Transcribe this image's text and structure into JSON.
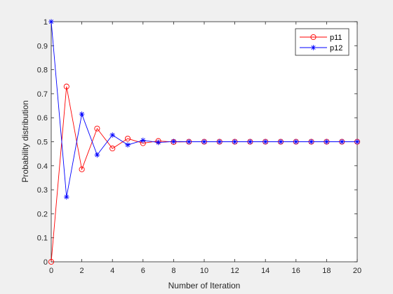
{
  "chart_data": {
    "type": "line",
    "title": "",
    "xlabel": "Number of Iteration",
    "ylabel": "Probability distribution",
    "xlim": [
      0,
      20
    ],
    "ylim": [
      0,
      1
    ],
    "xticks": [
      "0",
      "2",
      "4",
      "6",
      "8",
      "10",
      "12",
      "14",
      "16",
      "18",
      "20"
    ],
    "yticks": [
      "0",
      "0.1",
      "0.2",
      "0.3",
      "0.4",
      "0.5",
      "0.6",
      "0.7",
      "0.8",
      "0.9",
      "1"
    ],
    "grid": false,
    "legend_position": "top-right",
    "x": [
      0,
      1,
      2,
      3,
      4,
      5,
      6,
      7,
      8,
      9,
      10,
      11,
      12,
      13,
      14,
      15,
      16,
      17,
      18,
      19,
      20
    ],
    "series": [
      {
        "name": "p11",
        "color": "#ff0000",
        "marker": "circle",
        "values": [
          0,
          0.73,
          0.385,
          0.555,
          0.472,
          0.513,
          0.494,
          0.503,
          0.499,
          0.5,
          0.5,
          0.5,
          0.5,
          0.5,
          0.5,
          0.5,
          0.5,
          0.5,
          0.5,
          0.5,
          0.5
        ]
      },
      {
        "name": "p12",
        "color": "#0000ff",
        "marker": "star",
        "values": [
          1,
          0.27,
          0.615,
          0.445,
          0.528,
          0.487,
          0.506,
          0.497,
          0.501,
          0.5,
          0.5,
          0.5,
          0.5,
          0.5,
          0.5,
          0.5,
          0.5,
          0.5,
          0.5,
          0.5,
          0.5
        ]
      }
    ]
  }
}
